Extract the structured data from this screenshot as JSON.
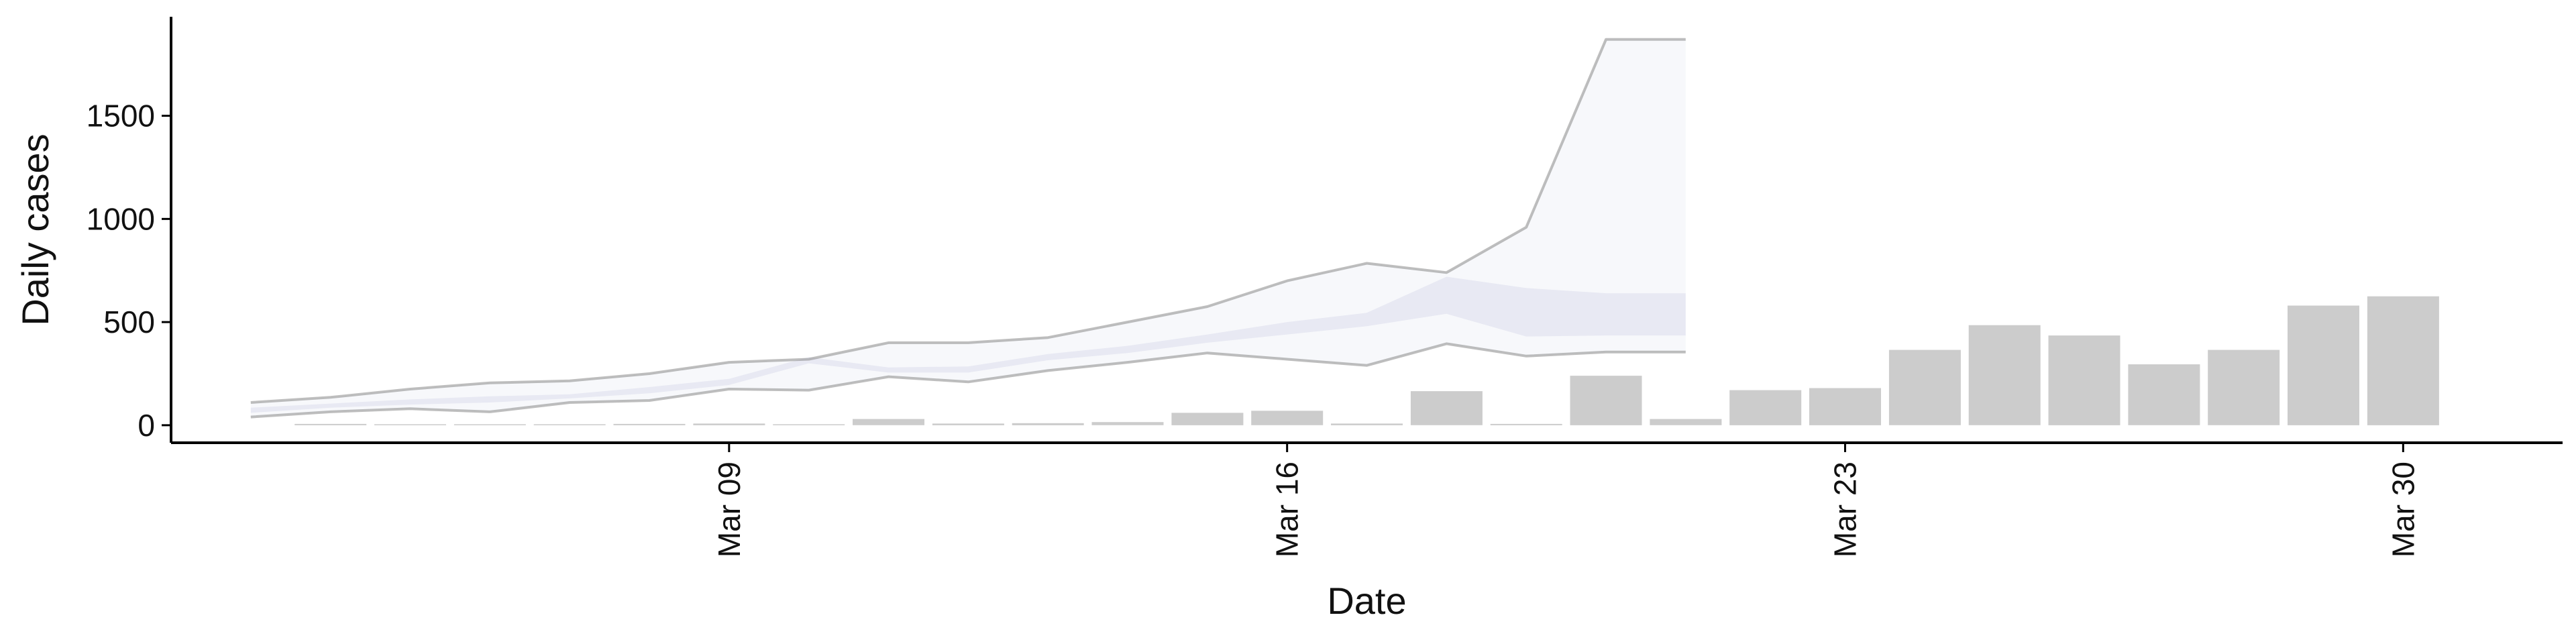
{
  "chart_data": {
    "type": "bar",
    "xlabel": "Date",
    "ylabel": "Daily cases",
    "x_tick_labels": [
      {
        "date": "2020-03-09",
        "label": "Mar 09"
      },
      {
        "date": "2020-03-16",
        "label": "Mar 16"
      },
      {
        "date": "2020-03-23",
        "label": "Mar 23"
      },
      {
        "date": "2020-03-30",
        "label": "Mar 30"
      }
    ],
    "y_ticks": [
      0,
      500,
      1000,
      1500
    ],
    "ylim": [
      -85,
      1980
    ],
    "xlim": [
      "2020-03-02",
      "2020-04-01"
    ],
    "bar_color": "#cccccc",
    "band_color": "#d4d7e8",
    "line_color": "#888888",
    "bars": {
      "dates": [
        "2020-03-04",
        "2020-03-05",
        "2020-03-06",
        "2020-03-07",
        "2020-03-08",
        "2020-03-09",
        "2020-03-10",
        "2020-03-11",
        "2020-03-12",
        "2020-03-13",
        "2020-03-14",
        "2020-03-15",
        "2020-03-16",
        "2020-03-17",
        "2020-03-18",
        "2020-03-19",
        "2020-03-20",
        "2020-03-21",
        "2020-03-22",
        "2020-03-23",
        "2020-03-24",
        "2020-03-25",
        "2020-03-26",
        "2020-03-27",
        "2020-03-28",
        "2020-03-29",
        "2020-03-30"
      ],
      "values": [
        2,
        0,
        0,
        0,
        5,
        8,
        0,
        30,
        8,
        10,
        15,
        60,
        70,
        8,
        165,
        5,
        240,
        30,
        170,
        180,
        365,
        485,
        435,
        295,
        365,
        580,
        625
      ]
    },
    "nowcast": {
      "dates": [
        "2020-03-03",
        "2020-03-04",
        "2020-03-05",
        "2020-03-06",
        "2020-03-07",
        "2020-03-08",
        "2020-03-09",
        "2020-03-10",
        "2020-03-11",
        "2020-03-12",
        "2020-03-13",
        "2020-03-14",
        "2020-03-15",
        "2020-03-16",
        "2020-03-17",
        "2020-03-18",
        "2020-03-19",
        "2020-03-20",
        "2020-03-21"
      ],
      "upper_90": [
        110,
        135,
        175,
        205,
        215,
        250,
        305,
        320,
        400,
        400,
        425,
        500,
        575,
        700,
        785,
        740,
        960,
        1870,
        null
      ],
      "lower_90": [
        40,
        65,
        80,
        65,
        110,
        120,
        175,
        170,
        235,
        210,
        265,
        305,
        350,
        320,
        290,
        395,
        335,
        355,
        null
      ],
      "upper_50": [
        85,
        105,
        125,
        140,
        150,
        185,
        225,
        330,
        280,
        285,
        345,
        385,
        440,
        500,
        545,
        720,
        665,
        640,
        null
      ],
      "lower_50": [
        60,
        85,
        100,
        110,
        130,
        155,
        195,
        300,
        255,
        255,
        315,
        350,
        400,
        440,
        480,
        540,
        430,
        435,
        null
      ],
      "band_end_date": "2020-03-21"
    }
  }
}
